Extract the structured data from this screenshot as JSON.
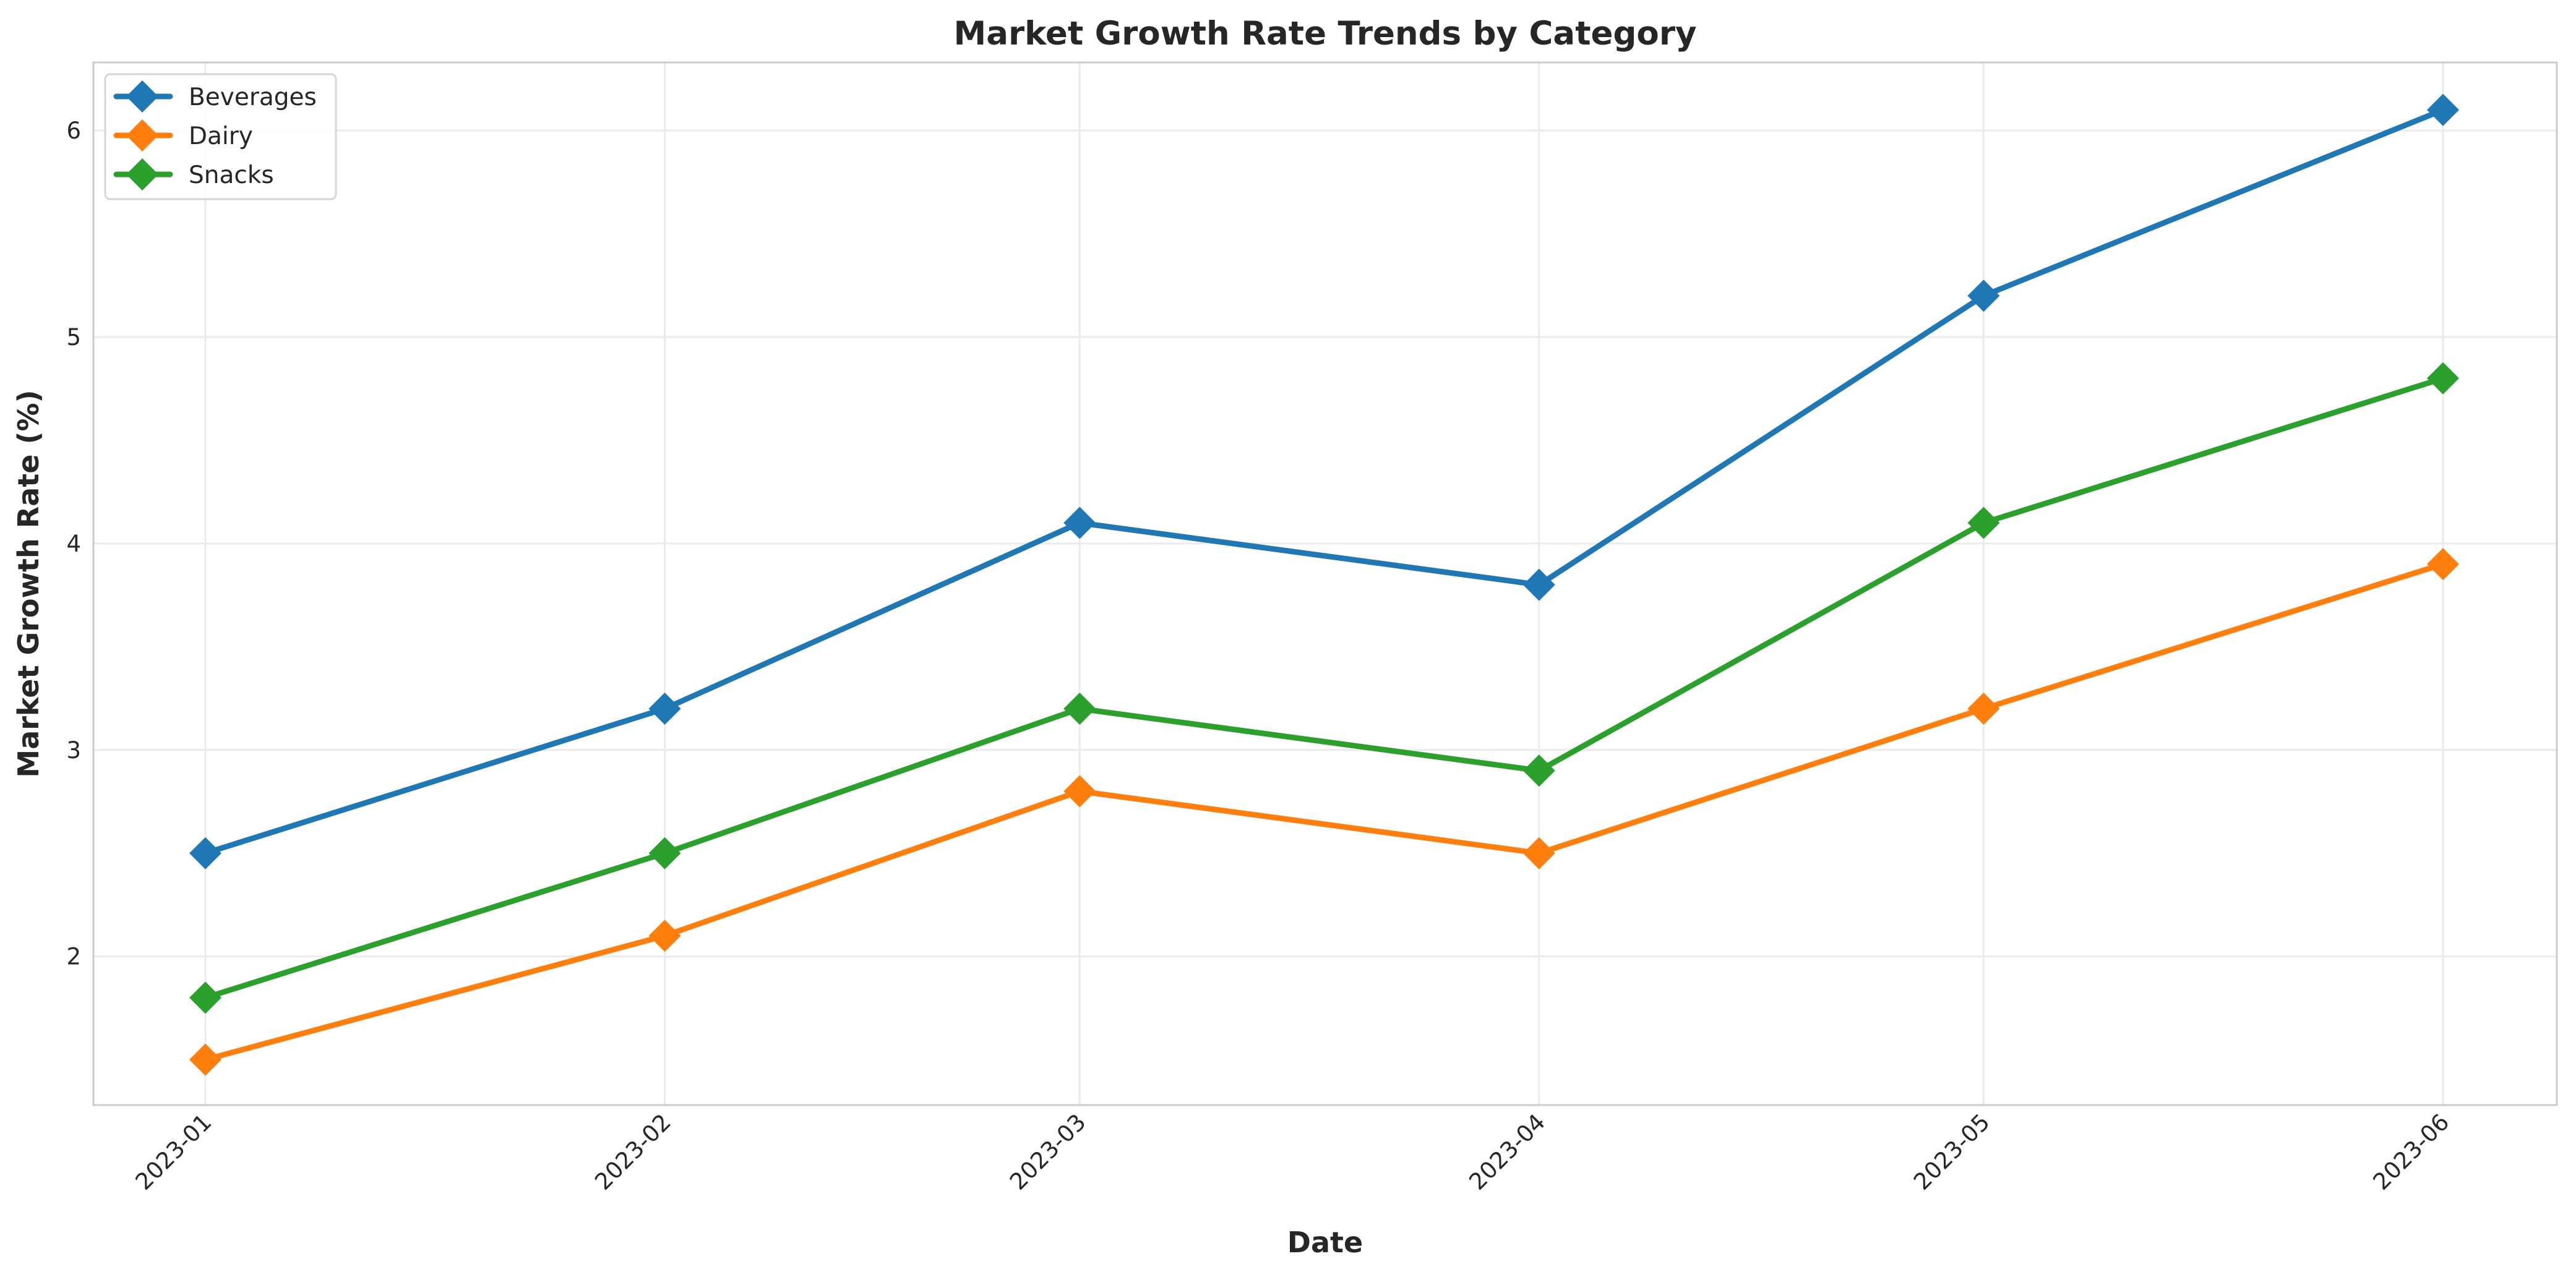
{
  "chart_data": {
    "type": "line",
    "title": "Market Growth Rate Trends by Category",
    "xlabel": "Date",
    "ylabel": "Market Growth Rate (%)",
    "x": [
      "2023-01",
      "2023-02",
      "2023-03",
      "2023-04",
      "2023-05",
      "2023-06"
    ],
    "x_ticks": [
      "2023-01",
      "2023-02",
      "2023-03",
      "2023-04",
      "2023-05",
      "2023-06"
    ],
    "y_ticks": [
      2,
      3,
      4,
      5,
      6
    ],
    "ylim": [
      1.28,
      6.33
    ],
    "grid": true,
    "legend_position": "top-left",
    "marker": "diamond",
    "series": [
      {
        "name": "Beverages",
        "color": "#1f77b4",
        "values": [
          2.5,
          3.2,
          4.1,
          3.8,
          5.2,
          6.1
        ]
      },
      {
        "name": "Dairy",
        "color": "#ff7f0e",
        "values": [
          1.5,
          2.1,
          2.8,
          2.5,
          3.2,
          3.9
        ]
      },
      {
        "name": "Snacks",
        "color": "#2ca02c",
        "values": [
          1.8,
          2.5,
          3.2,
          2.9,
          4.1,
          4.8
        ]
      }
    ]
  }
}
